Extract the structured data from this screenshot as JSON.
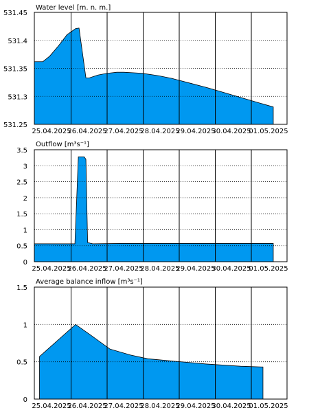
{
  "chart_data": [
    {
      "type": "area",
      "title": "Water level [m. n. m.]",
      "fill_color": "#0098f0",
      "ylim": [
        531.25,
        531.45
      ],
      "yticks": [
        "531.45",
        "531.4",
        "531.35",
        "531.3",
        "531.25"
      ],
      "ytick_values": [
        531.45,
        531.4,
        531.35,
        531.3,
        531.25
      ],
      "xlim": [
        0,
        7.35
      ],
      "xticks": [
        "25.04.2025",
        "26.04.2025",
        "27.04.2025",
        "28.04.2025",
        "29.04.2025",
        "30.04.2025",
        "01.05.2025"
      ],
      "x": [
        0.0,
        0.25,
        0.45,
        0.7,
        0.95,
        1.2,
        1.3,
        1.5,
        1.6,
        1.85,
        2.1,
        2.4,
        2.6,
        2.9,
        3.15,
        3.6,
        4.0,
        4.5,
        5.0,
        5.5,
        6.0,
        6.5,
        6.95
      ],
      "y": [
        531.362,
        531.362,
        531.372,
        531.39,
        531.41,
        531.421,
        531.422,
        531.333,
        531.333,
        531.338,
        531.341,
        531.343,
        531.343,
        531.342,
        531.341,
        531.337,
        531.332,
        531.324,
        531.316,
        531.307,
        531.298,
        531.289,
        531.281
      ]
    },
    {
      "type": "area",
      "title": "Outflow [m³s⁻¹]",
      "fill_color": "#0098f0",
      "ylim": [
        0,
        3.5
      ],
      "yticks": [
        "3.5",
        "3",
        "2.5",
        "2",
        "1.5",
        "1",
        "0.5",
        "0"
      ],
      "ytick_values": [
        3.5,
        3,
        2.5,
        2,
        1.5,
        1,
        0.5,
        0
      ],
      "xlim": [
        0,
        7.35
      ],
      "xticks": [
        "25.04.2025",
        "26.04.2025",
        "27.04.2025",
        "28.04.2025",
        "29.04.2025",
        "30.04.2025",
        "01.05.2025"
      ],
      "x": [
        0.0,
        1.0,
        1.18,
        1.28,
        1.32,
        1.45,
        1.5,
        1.55,
        1.62,
        1.7,
        2.5,
        3.5,
        4.5,
        5.5,
        6.5,
        6.95
      ],
      "y": [
        0.56,
        0.56,
        0.56,
        3.28,
        3.28,
        3.28,
        3.2,
        0.6,
        0.58,
        0.56,
        0.57,
        0.57,
        0.57,
        0.57,
        0.57,
        0.57
      ]
    },
    {
      "type": "area",
      "title": "Average balance inflow  [m³s⁻¹]",
      "fill_color": "#0098f0",
      "ylim": [
        0,
        1.5
      ],
      "yticks": [
        "1.5",
        "1",
        "0.5",
        "0"
      ],
      "ytick_values": [
        1.5,
        1,
        0.5,
        0
      ],
      "xlim": [
        0,
        7.35
      ],
      "xticks": [
        "25.04.2025",
        "26.04.2025",
        "27.04.2025",
        "28.04.2025",
        "29.04.2025",
        "30.04.2025",
        "01.05.2025"
      ],
      "x": [
        0.15,
        1.2,
        1.6,
        2.2,
        2.8,
        3.3,
        4.0,
        5.0,
        6.0,
        6.65
      ],
      "y": [
        0.57,
        1.0,
        0.87,
        0.67,
        0.59,
        0.54,
        0.51,
        0.47,
        0.44,
        0.43
      ]
    }
  ]
}
